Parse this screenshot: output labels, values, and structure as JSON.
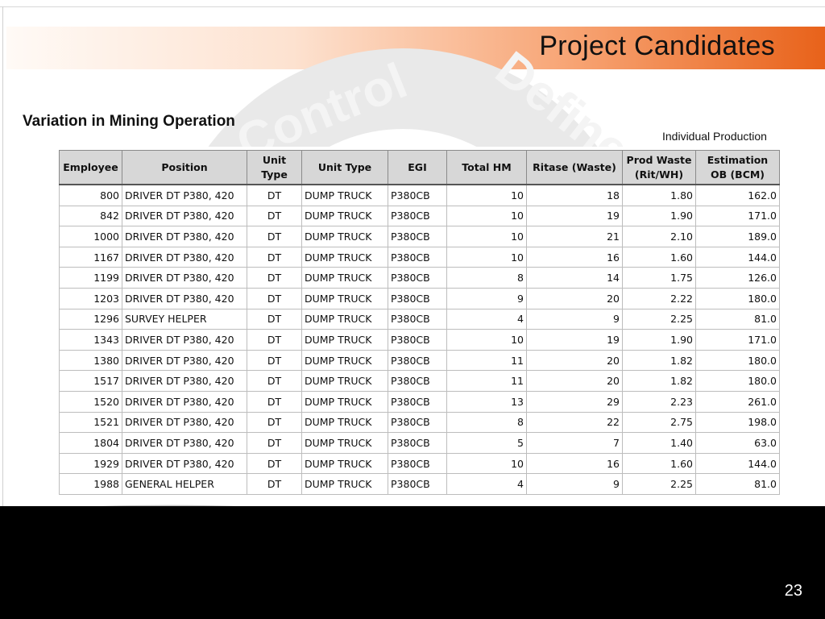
{
  "slide": {
    "title": "Project Candidates",
    "subtitle": "Variation in Mining Operation",
    "caption": "Individual Production",
    "page_number": "23",
    "watermark_words": [
      "Control",
      "Define"
    ]
  },
  "colors": {
    "accent_orange": "#e8621a",
    "header_gray": "#d7d7d7",
    "footer_black": "#000000"
  },
  "table": {
    "headers": [
      "Employee",
      "Position",
      "Unit Type",
      "Unit Type",
      "EGI",
      "Total HM",
      "Ritase (Waste)",
      "Prod Waste (Rit/WH)",
      "Estimation OB (BCM)"
    ],
    "rows": [
      [
        "800",
        "DRIVER DT P380, 420",
        "DT",
        "DUMP TRUCK",
        "P380CB",
        "10",
        "18",
        "1.80",
        "162.0"
      ],
      [
        "842",
        "DRIVER DT P380, 420",
        "DT",
        "DUMP TRUCK",
        "P380CB",
        "10",
        "19",
        "1.90",
        "171.0"
      ],
      [
        "1000",
        "DRIVER DT P380, 420",
        "DT",
        "DUMP TRUCK",
        "P380CB",
        "10",
        "21",
        "2.10",
        "189.0"
      ],
      [
        "1167",
        "DRIVER DT P380, 420",
        "DT",
        "DUMP TRUCK",
        "P380CB",
        "10",
        "16",
        "1.60",
        "144.0"
      ],
      [
        "1199",
        "DRIVER DT P380, 420",
        "DT",
        "DUMP TRUCK",
        "P380CB",
        "8",
        "14",
        "1.75",
        "126.0"
      ],
      [
        "1203",
        "DRIVER DT P380, 420",
        "DT",
        "DUMP TRUCK",
        "P380CB",
        "9",
        "20",
        "2.22",
        "180.0"
      ],
      [
        "1296",
        "SURVEY HELPER",
        "DT",
        "DUMP TRUCK",
        "P380CB",
        "4",
        "9",
        "2.25",
        "81.0"
      ],
      [
        "1343",
        "DRIVER DT P380, 420",
        "DT",
        "DUMP TRUCK",
        "P380CB",
        "10",
        "19",
        "1.90",
        "171.0"
      ],
      [
        "1380",
        "DRIVER DT P380, 420",
        "DT",
        "DUMP TRUCK",
        "P380CB",
        "11",
        "20",
        "1.82",
        "180.0"
      ],
      [
        "1517",
        "DRIVER DT P380, 420",
        "DT",
        "DUMP TRUCK",
        "P380CB",
        "11",
        "20",
        "1.82",
        "180.0"
      ],
      [
        "1520",
        "DRIVER DT P380, 420",
        "DT",
        "DUMP TRUCK",
        "P380CB",
        "13",
        "29",
        "2.23",
        "261.0"
      ],
      [
        "1521",
        "DRIVER DT P380, 420",
        "DT",
        "DUMP TRUCK",
        "P380CB",
        "8",
        "22",
        "2.75",
        "198.0"
      ],
      [
        "1804",
        "DRIVER DT P380, 420",
        "DT",
        "DUMP TRUCK",
        "P380CB",
        "5",
        "7",
        "1.40",
        "63.0"
      ],
      [
        "1929",
        "DRIVER DT P380, 420",
        "DT",
        "DUMP TRUCK",
        "P380CB",
        "10",
        "16",
        "1.60",
        "144.0"
      ],
      [
        "1988",
        "GENERAL HELPER",
        "DT",
        "DUMP TRUCK",
        "P380CB",
        "4",
        "9",
        "2.25",
        "81.0"
      ]
    ]
  }
}
